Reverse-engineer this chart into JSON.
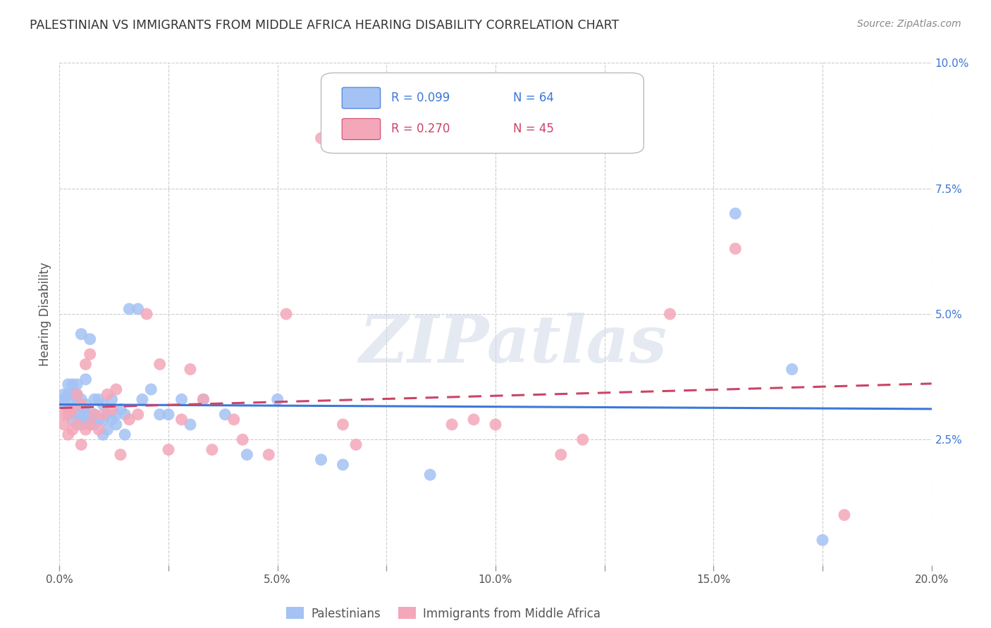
{
  "title": "PALESTINIAN VS IMMIGRANTS FROM MIDDLE AFRICA HEARING DISABILITY CORRELATION CHART",
  "source": "Source: ZipAtlas.com",
  "ylabel": "Hearing Disability",
  "xlim": [
    0.0,
    0.2
  ],
  "ylim": [
    0.0,
    0.1
  ],
  "xticks": [
    0.0,
    0.025,
    0.05,
    0.075,
    0.1,
    0.125,
    0.15,
    0.175,
    0.2
  ],
  "xtick_labels": [
    "0.0%",
    "",
    "5.0%",
    "",
    "10.0%",
    "",
    "15.0%",
    "",
    "20.0%"
  ],
  "yticks": [
    0.0,
    0.025,
    0.05,
    0.075,
    0.1
  ],
  "ytick_labels": [
    "",
    "2.5%",
    "5.0%",
    "7.5%",
    "10.0%"
  ],
  "series1_color": "#a4c2f4",
  "series2_color": "#f4a7b9",
  "line1_color": "#3c78d8",
  "line2_color": "#cc4466",
  "series1_label": "Palestinians",
  "series2_label": "Immigrants from Middle Africa",
  "R1": 0.099,
  "N1": 64,
  "R2": 0.27,
  "N2": 45,
  "watermark": "ZIPatlas",
  "background_color": "#ffffff",
  "grid_color": "#cccccc",
  "series1_x": [
    0.001,
    0.001,
    0.001,
    0.002,
    0.002,
    0.002,
    0.002,
    0.003,
    0.003,
    0.003,
    0.003,
    0.003,
    0.004,
    0.004,
    0.004,
    0.004,
    0.004,
    0.005,
    0.005,
    0.005,
    0.005,
    0.005,
    0.006,
    0.006,
    0.006,
    0.006,
    0.007,
    0.007,
    0.007,
    0.008,
    0.008,
    0.008,
    0.009,
    0.009,
    0.01,
    0.01,
    0.01,
    0.011,
    0.011,
    0.012,
    0.012,
    0.013,
    0.013,
    0.014,
    0.015,
    0.015,
    0.016,
    0.018,
    0.019,
    0.021,
    0.023,
    0.025,
    0.028,
    0.03,
    0.033,
    0.038,
    0.043,
    0.05,
    0.06,
    0.065,
    0.085,
    0.155,
    0.168,
    0.175
  ],
  "series1_y": [
    0.032,
    0.033,
    0.034,
    0.03,
    0.031,
    0.034,
    0.036,
    0.029,
    0.031,
    0.033,
    0.034,
    0.036,
    0.03,
    0.031,
    0.032,
    0.034,
    0.036,
    0.028,
    0.03,
    0.031,
    0.033,
    0.046,
    0.029,
    0.03,
    0.032,
    0.037,
    0.028,
    0.03,
    0.045,
    0.028,
    0.03,
    0.033,
    0.029,
    0.033,
    0.026,
    0.029,
    0.032,
    0.027,
    0.03,
    0.029,
    0.033,
    0.028,
    0.03,
    0.031,
    0.026,
    0.03,
    0.051,
    0.051,
    0.033,
    0.035,
    0.03,
    0.03,
    0.033,
    0.028,
    0.033,
    0.03,
    0.022,
    0.033,
    0.021,
    0.02,
    0.018,
    0.07,
    0.039,
    0.005
  ],
  "series2_x": [
    0.001,
    0.001,
    0.002,
    0.002,
    0.003,
    0.003,
    0.004,
    0.004,
    0.005,
    0.005,
    0.006,
    0.006,
    0.007,
    0.007,
    0.008,
    0.009,
    0.01,
    0.011,
    0.012,
    0.013,
    0.014,
    0.016,
    0.018,
    0.02,
    0.023,
    0.025,
    0.028,
    0.03,
    0.033,
    0.035,
    0.04,
    0.042,
    0.048,
    0.052,
    0.06,
    0.065,
    0.068,
    0.09,
    0.095,
    0.1,
    0.115,
    0.12,
    0.14,
    0.155,
    0.18
  ],
  "series2_y": [
    0.028,
    0.03,
    0.026,
    0.03,
    0.027,
    0.031,
    0.028,
    0.034,
    0.024,
    0.032,
    0.027,
    0.04,
    0.028,
    0.042,
    0.03,
    0.027,
    0.03,
    0.034,
    0.031,
    0.035,
    0.022,
    0.029,
    0.03,
    0.05,
    0.04,
    0.023,
    0.029,
    0.039,
    0.033,
    0.023,
    0.029,
    0.025,
    0.022,
    0.05,
    0.085,
    0.028,
    0.024,
    0.028,
    0.029,
    0.028,
    0.022,
    0.025,
    0.05,
    0.063,
    0.01
  ],
  "line1_start_x": 0.0,
  "line1_end_x": 0.2,
  "line2_start_x": 0.0,
  "line2_end_x": 0.2
}
